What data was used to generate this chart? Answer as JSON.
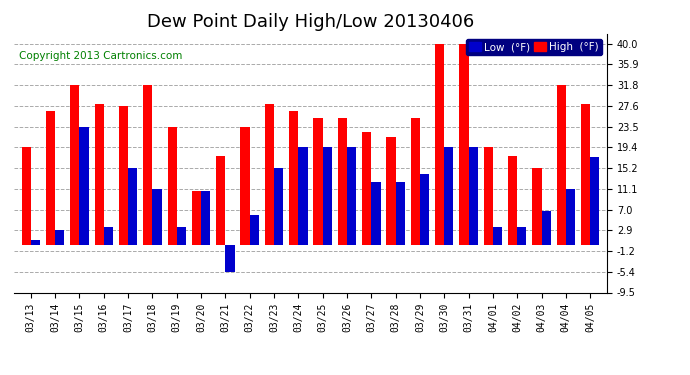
{
  "title": "Dew Point Daily High/Low 20130406",
  "copyright": "Copyright 2013 Cartronics.com",
  "dates": [
    "03/13",
    "03/14",
    "03/15",
    "03/16",
    "03/17",
    "03/18",
    "03/19",
    "03/20",
    "03/21",
    "03/22",
    "03/23",
    "03/24",
    "03/25",
    "03/26",
    "03/27",
    "03/28",
    "03/29",
    "03/30",
    "03/31",
    "04/01",
    "04/02",
    "04/03",
    "04/04",
    "04/05"
  ],
  "high_values": [
    19.4,
    26.6,
    31.8,
    28.0,
    27.6,
    31.8,
    23.5,
    10.8,
    17.6,
    23.5,
    28.0,
    26.6,
    25.3,
    25.3,
    22.5,
    21.5,
    25.3,
    40.0,
    40.0,
    19.4,
    17.6,
    15.2,
    31.8,
    28.0
  ],
  "low_values": [
    1.0,
    3.0,
    23.5,
    3.5,
    15.2,
    11.1,
    3.5,
    10.8,
    -5.4,
    6.0,
    15.2,
    19.4,
    19.4,
    19.4,
    12.5,
    12.5,
    14.0,
    19.4,
    19.4,
    3.5,
    3.5,
    6.8,
    11.1,
    17.5
  ],
  "bar_width": 0.38,
  "high_color": "#ff0000",
  "low_color": "#0000cc",
  "bg_color": "#ffffff",
  "grid_color": "#aaaaaa",
  "ylim_min": -9.5,
  "ylim_max": 42.0,
  "yticks": [
    -9.5,
    -5.4,
    -1.2,
    2.9,
    7.0,
    11.1,
    15.2,
    19.4,
    23.5,
    27.6,
    31.8,
    35.9,
    40.0
  ],
  "legend_low_label": "Low  (°F)",
  "legend_high_label": "High  (°F)",
  "title_fontsize": 13,
  "copyright_fontsize": 7.5,
  "tick_fontsize": 7,
  "legend_bg": "#000080"
}
